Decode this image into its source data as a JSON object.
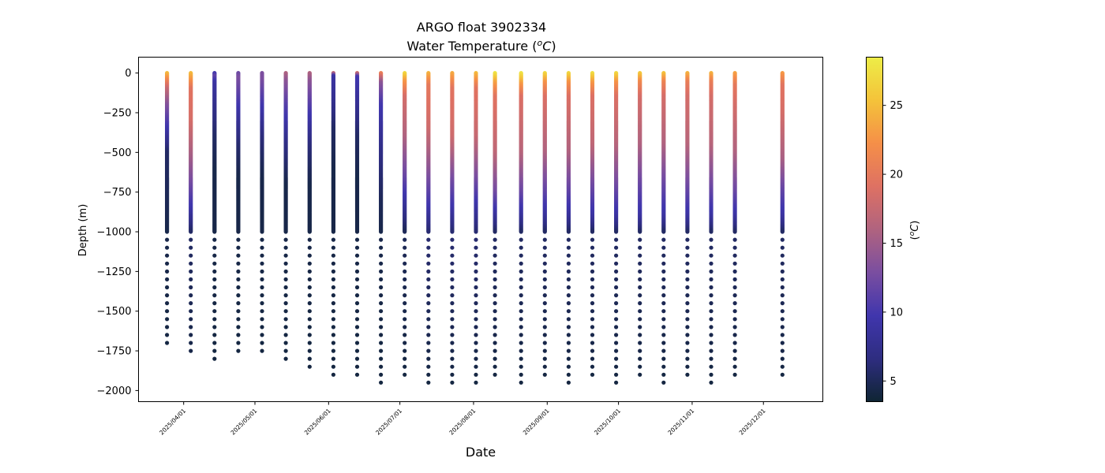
{
  "chart_data": {
    "type": "scatter",
    "title": "ARGO float 3902334",
    "subtitle": "Water Temperature (",
    "subtitle_math": "o",
    "subtitle_unit": "C",
    "subtitle_close": ")",
    "xlabel": "Date",
    "ylabel": "Depth (m)",
    "colorbar_label": "(",
    "colorbar_label_math": "o",
    "colorbar_label_unit": "C",
    "colorbar_label_close": ")",
    "ylim": [
      -2070,
      100
    ],
    "xlim": [
      "2025-03-13",
      "2025-12-26"
    ],
    "yticks": [
      0,
      -250,
      -500,
      -750,
      -1000,
      -1250,
      -1500,
      -1750,
      -2000
    ],
    "ytick_labels": [
      "0",
      "−250",
      "−500",
      "−750",
      "−1000",
      "−1250",
      "−1500",
      "−1750",
      "−2000"
    ],
    "xticks": [
      "2025-04-01",
      "2025-05-01",
      "2025-06-01",
      "2025-07-01",
      "2025-08-01",
      "2025-09-01",
      "2025-10-01",
      "2025-11-01",
      "2025-12-01"
    ],
    "xtick_labels": [
      "2025/04/01",
      "2025/05/01",
      "2025/06/01",
      "2025/07/01",
      "2025/08/01",
      "2025/09/01",
      "2025/10/01",
      "2025/11/01",
      "2025/12/01"
    ],
    "colorbar_range": [
      3.5,
      28.5
    ],
    "colorbar_ticks": [
      5,
      10,
      15,
      20,
      25
    ],
    "colormap": [
      "#0f2533",
      "#2e2d80",
      "#4036ad",
      "#7a4ea0",
      "#b0637f",
      "#de7163",
      "#f58f48",
      "#f4c33a",
      "#eded47"
    ],
    "grid": false,
    "legend": "none",
    "series": [
      {
        "date": "2025-03-25",
        "max_depth": -1730,
        "profile": [
          [
            0,
            25.0
          ],
          [
            -50,
            21.0
          ],
          [
            -100,
            17.5
          ],
          [
            -200,
            13.5
          ],
          [
            -350,
            9.5
          ],
          [
            -500,
            5.5
          ],
          [
            -1000,
            4.5
          ],
          [
            -2000,
            4.0
          ]
        ]
      },
      {
        "date": "2025-04-04",
        "max_depth": -1780,
        "profile": [
          [
            0,
            25.0
          ],
          [
            -100,
            19.5
          ],
          [
            -300,
            18.5
          ],
          [
            -550,
            15.0
          ],
          [
            -700,
            12.5
          ],
          [
            -850,
            9.5
          ],
          [
            -1000,
            5.5
          ],
          [
            -2000,
            4.0
          ]
        ]
      },
      {
        "date": "2025-04-14",
        "max_depth": -1825,
        "profile": [
          [
            0,
            9.5
          ],
          [
            -20,
            11.5
          ],
          [
            -60,
            9.0
          ],
          [
            -200,
            7.5
          ],
          [
            -400,
            5.5
          ],
          [
            -600,
            4.5
          ],
          [
            -2000,
            4.0
          ]
        ]
      },
      {
        "date": "2025-04-24",
        "max_depth": -1780,
        "profile": [
          [
            0,
            12.0
          ],
          [
            -30,
            13.0
          ],
          [
            -120,
            11.5
          ],
          [
            -250,
            9.0
          ],
          [
            -450,
            6.0
          ],
          [
            -650,
            4.5
          ],
          [
            -2000,
            4.0
          ]
        ]
      },
      {
        "date": "2025-05-04",
        "max_depth": -1780,
        "profile": [
          [
            0,
            13.0
          ],
          [
            -40,
            13.0
          ],
          [
            -200,
            10.0
          ],
          [
            -400,
            6.5
          ],
          [
            -650,
            4.5
          ],
          [
            -2000,
            4.0
          ]
        ]
      },
      {
        "date": "2025-05-14",
        "max_depth": -1825,
        "profile": [
          [
            0,
            16.0
          ],
          [
            -50,
            14.0
          ],
          [
            -200,
            11.0
          ],
          [
            -450,
            7.0
          ],
          [
            -700,
            4.5
          ],
          [
            -2000,
            4.0
          ]
        ]
      },
      {
        "date": "2025-05-24",
        "max_depth": -1880,
        "profile": [
          [
            0,
            16.0
          ],
          [
            -50,
            14.0
          ],
          [
            -250,
            10.0
          ],
          [
            -450,
            6.5
          ],
          [
            -700,
            4.5
          ],
          [
            -2000,
            4.0
          ]
        ]
      },
      {
        "date": "2025-06-03",
        "max_depth": -1930,
        "profile": [
          [
            0,
            17.0
          ],
          [
            -20,
            9.0
          ],
          [
            -150,
            8.0
          ],
          [
            -350,
            5.5
          ],
          [
            -600,
            4.5
          ],
          [
            -2000,
            4.0
          ]
        ]
      },
      {
        "date": "2025-06-13",
        "max_depth": -1930,
        "profile": [
          [
            0,
            18.0
          ],
          [
            -25,
            10.0
          ],
          [
            -200,
            8.0
          ],
          [
            -400,
            5.5
          ],
          [
            -650,
            4.5
          ],
          [
            -2000,
            4.0
          ]
        ]
      },
      {
        "date": "2025-06-23",
        "max_depth": -1975,
        "profile": [
          [
            0,
            21.0
          ],
          [
            -60,
            14.0
          ],
          [
            -200,
            10.0
          ],
          [
            -500,
            7.0
          ],
          [
            -800,
            5.0
          ],
          [
            -1000,
            4.5
          ],
          [
            -2000,
            4.0
          ]
        ]
      },
      {
        "date": "2025-07-03",
        "max_depth": -1930,
        "profile": [
          [
            0,
            27.0
          ],
          [
            -50,
            23.0
          ],
          [
            -150,
            18.5
          ],
          [
            -400,
            16.0
          ],
          [
            -650,
            12.0
          ],
          [
            -850,
            8.0
          ],
          [
            -1000,
            5.0
          ],
          [
            -2000,
            4.0
          ]
        ]
      },
      {
        "date": "2025-07-13",
        "max_depth": -1975,
        "profile": [
          [
            0,
            24.5
          ],
          [
            -80,
            20.0
          ],
          [
            -350,
            18.0
          ],
          [
            -600,
            14.0
          ],
          [
            -850,
            9.5
          ],
          [
            -1000,
            6.0
          ],
          [
            -2000,
            4.0
          ]
        ]
      },
      {
        "date": "2025-07-23",
        "max_depth": -1975,
        "profile": [
          [
            0,
            24.0
          ],
          [
            -100,
            19.5
          ],
          [
            -400,
            18.0
          ],
          [
            -650,
            13.0
          ],
          [
            -850,
            9.5
          ],
          [
            -1000,
            6.0
          ],
          [
            -2000,
            4.0
          ]
        ]
      },
      {
        "date": "2025-08-02",
        "max_depth": -1975,
        "profile": [
          [
            0,
            25.0
          ],
          [
            -100,
            19.5
          ],
          [
            -400,
            17.5
          ],
          [
            -650,
            13.0
          ],
          [
            -850,
            9.0
          ],
          [
            -1000,
            6.0
          ],
          [
            -2000,
            4.0
          ]
        ]
      },
      {
        "date": "2025-08-10",
        "max_depth": -1930,
        "profile": [
          [
            0,
            28.0
          ],
          [
            -60,
            23.5
          ],
          [
            -150,
            19.5
          ],
          [
            -500,
            17.0
          ],
          [
            -750,
            12.5
          ],
          [
            -900,
            8.5
          ],
          [
            -1000,
            5.5
          ],
          [
            -2000,
            4.0
          ]
        ]
      },
      {
        "date": "2025-08-21",
        "max_depth": -1975,
        "profile": [
          [
            0,
            28.0
          ],
          [
            -70,
            23.0
          ],
          [
            -150,
            19.0
          ],
          [
            -500,
            16.5
          ],
          [
            -750,
            12.0
          ],
          [
            -900,
            8.5
          ],
          [
            -1000,
            5.5
          ],
          [
            -2000,
            4.0
          ]
        ]
      },
      {
        "date": "2025-08-31",
        "max_depth": -1930,
        "profile": [
          [
            0,
            27.0
          ],
          [
            -60,
            22.5
          ],
          [
            -150,
            19.0
          ],
          [
            -500,
            16.0
          ],
          [
            -750,
            11.5
          ],
          [
            -900,
            8.5
          ],
          [
            -1000,
            5.5
          ],
          [
            -2000,
            4.0
          ]
        ]
      },
      {
        "date": "2025-09-10",
        "max_depth": -1975,
        "profile": [
          [
            0,
            27.0
          ],
          [
            -60,
            22.5
          ],
          [
            -150,
            19.0
          ],
          [
            -500,
            16.0
          ],
          [
            -750,
            11.5
          ],
          [
            -900,
            8.5
          ],
          [
            -1000,
            5.5
          ],
          [
            -2000,
            4.0
          ]
        ]
      },
      {
        "date": "2025-09-20",
        "max_depth": -1930,
        "profile": [
          [
            0,
            27.5
          ],
          [
            -60,
            23.0
          ],
          [
            -150,
            19.0
          ],
          [
            -450,
            17.0
          ],
          [
            -700,
            12.5
          ],
          [
            -900,
            9.0
          ],
          [
            -1000,
            5.5
          ],
          [
            -2000,
            4.0
          ]
        ]
      },
      {
        "date": "2025-09-30",
        "max_depth": -1975,
        "profile": [
          [
            0,
            27.0
          ],
          [
            -60,
            22.5
          ],
          [
            -150,
            19.0
          ],
          [
            -450,
            16.5
          ],
          [
            -700,
            12.5
          ],
          [
            -900,
            9.0
          ],
          [
            -1000,
            5.5
          ],
          [
            -2000,
            4.0
          ]
        ]
      },
      {
        "date": "2025-10-10",
        "max_depth": -1930,
        "profile": [
          [
            0,
            26.0
          ],
          [
            -60,
            21.5
          ],
          [
            -150,
            18.5
          ],
          [
            -450,
            16.0
          ],
          [
            -700,
            12.0
          ],
          [
            -900,
            9.0
          ],
          [
            -1000,
            5.5
          ],
          [
            -2000,
            4.0
          ]
        ]
      },
      {
        "date": "2025-10-20",
        "max_depth": -1975,
        "profile": [
          [
            0,
            25.5
          ],
          [
            -60,
            21.0
          ],
          [
            -150,
            18.5
          ],
          [
            -450,
            16.0
          ],
          [
            -700,
            12.0
          ],
          [
            -900,
            9.0
          ],
          [
            -1000,
            5.5
          ],
          [
            -2000,
            4.0
          ]
        ]
      },
      {
        "date": "2025-10-30",
        "max_depth": -1930,
        "profile": [
          [
            0,
            24.5
          ],
          [
            -60,
            20.5
          ],
          [
            -150,
            18.5
          ],
          [
            -450,
            16.5
          ],
          [
            -700,
            12.5
          ],
          [
            -900,
            9.0
          ],
          [
            -1000,
            5.5
          ],
          [
            -2000,
            4.0
          ]
        ]
      },
      {
        "date": "2025-11-09",
        "max_depth": -1975,
        "profile": [
          [
            0,
            24.5
          ],
          [
            -60,
            20.5
          ],
          [
            -150,
            18.5
          ],
          [
            -450,
            16.5
          ],
          [
            -700,
            12.5
          ],
          [
            -900,
            9.0
          ],
          [
            -1000,
            5.5
          ],
          [
            -2000,
            4.0
          ]
        ]
      },
      {
        "date": "2025-11-19",
        "max_depth": -1930,
        "profile": [
          [
            0,
            23.5
          ],
          [
            -80,
            20.0
          ],
          [
            -200,
            18.5
          ],
          [
            -500,
            16.0
          ],
          [
            -750,
            12.0
          ],
          [
            -900,
            9.0
          ],
          [
            -1000,
            5.5
          ],
          [
            -2000,
            4.0
          ]
        ]
      },
      {
        "date": "2025-12-09",
        "max_depth": -1930,
        "profile": [
          [
            0,
            23.0
          ],
          [
            -80,
            19.5
          ],
          [
            -250,
            18.5
          ],
          [
            -550,
            15.5
          ],
          [
            -750,
            11.5
          ],
          [
            -900,
            9.0
          ],
          [
            -1000,
            5.5
          ],
          [
            -2000,
            4.0
          ]
        ]
      }
    ]
  }
}
